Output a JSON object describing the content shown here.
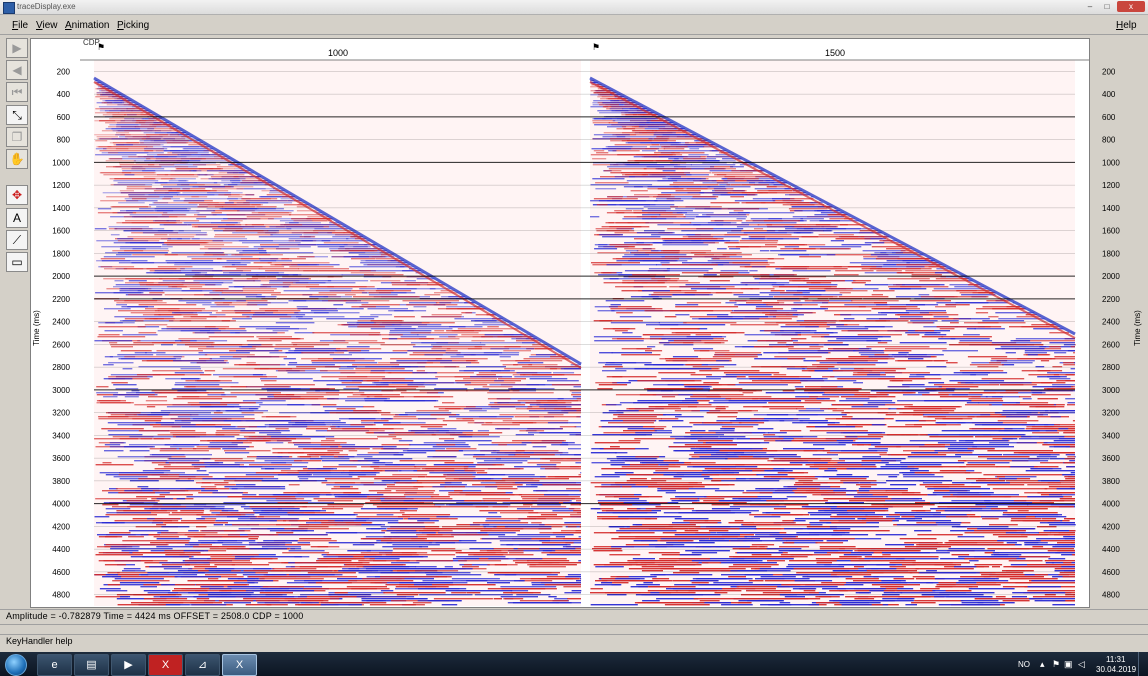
{
  "window": {
    "title": "traceDisplay.exe"
  },
  "window_controls": {
    "minimize": "–",
    "maximize": "□",
    "close": "x"
  },
  "menu": {
    "file": "File",
    "view": "View",
    "animation": "Animation",
    "picking": "Picking",
    "help": "Help"
  },
  "toolbar": {
    "tools": [
      {
        "icon": "play-forward-icon",
        "glyph": "▶",
        "active": false
      },
      {
        "icon": "play-back-icon",
        "glyph": "◀",
        "active": false
      },
      {
        "icon": "rewind-icon",
        "glyph": "⏮",
        "active": false
      },
      {
        "icon": "pick-tool-icon",
        "glyph": "⤡",
        "active": true
      },
      {
        "icon": "copy-icon",
        "glyph": "❐",
        "active": false
      },
      {
        "icon": "hand-icon",
        "glyph": "✋",
        "active": false
      },
      {
        "icon": "crosshair-icon",
        "glyph": "✥",
        "active": true,
        "red": true
      },
      {
        "icon": "text-icon",
        "glyph": "A",
        "active": true
      },
      {
        "icon": "velocity-icon",
        "glyph": "⟋",
        "active": true
      },
      {
        "icon": "box-icon",
        "glyph": "▭",
        "active": true
      }
    ]
  },
  "axes": {
    "top_label": "CDP",
    "cdp_labels": [
      "1000",
      "1500"
    ],
    "y_label": "Time (ms)",
    "time_ticks": [
      "200",
      "400",
      "600",
      "800",
      "1000",
      "1200",
      "1400",
      "1600",
      "1800",
      "2000",
      "2200",
      "2400",
      "2600",
      "2800",
      "3000",
      "3200",
      "3400",
      "3600",
      "3800",
      "4000",
      "4200",
      "4400",
      "4600",
      "4800"
    ]
  },
  "status": {
    "readout": "Amplitude = -0.782879  Time = 4424 ms  OFFSET = 2508.0  CDP = 1000",
    "key_help": "KeyHandler help"
  },
  "taskbar": {
    "buttons": [
      {
        "icon": "ie-icon",
        "glyph": "e"
      },
      {
        "icon": "folder-icon",
        "glyph": "▤"
      },
      {
        "icon": "media-player-icon",
        "glyph": "▶"
      },
      {
        "icon": "app-x-icon",
        "glyph": "X"
      },
      {
        "icon": "pdf-icon",
        "glyph": "⊿"
      },
      {
        "icon": "app-x-active-icon",
        "glyph": "X"
      }
    ],
    "lang": "NO",
    "clock_time": "11:31",
    "clock_date": "30.04.2019"
  }
}
